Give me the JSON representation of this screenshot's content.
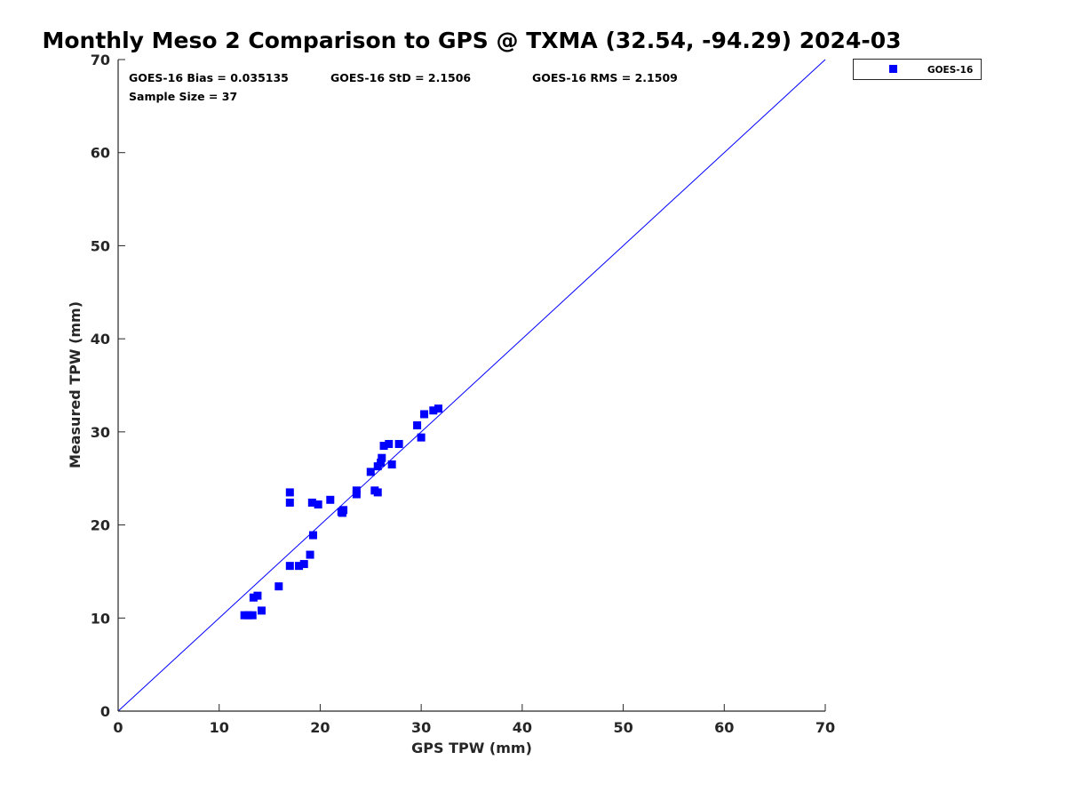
{
  "chart_data": {
    "type": "scatter",
    "title": "Monthly Meso 2 Comparison to GPS @ TXMA (32.54, -94.29) 2024-03",
    "xlabel": "GPS TPW (mm)",
    "ylabel": "Measured TPW (mm)",
    "xlim": [
      0,
      70
    ],
    "ylim": [
      0,
      70
    ],
    "xticks": [
      "0",
      "10",
      "20",
      "30",
      "40",
      "50",
      "60",
      "70"
    ],
    "yticks": [
      "0",
      "10",
      "20",
      "30",
      "40",
      "50",
      "60",
      "70"
    ],
    "grid": false,
    "legend_position": "top-right, outside plot",
    "colors": {
      "series": "#0000ff",
      "reference_line": "#0000ff",
      "axes": "#262626"
    },
    "stats": {
      "bias": "GOES-16 Bias = 0.035135",
      "std": "GOES-16 StD = 2.1506",
      "rms": "GOES-16 RMS = 2.1509",
      "sample_size": "Sample Size = 37"
    },
    "reference_line": {
      "x": [
        0,
        70
      ],
      "y": [
        0,
        70
      ]
    },
    "series": [
      {
        "name": "GOES-16",
        "marker": "square",
        "points": [
          [
            12.5,
            10.3
          ],
          [
            12.9,
            10.3
          ],
          [
            13.3,
            10.3
          ],
          [
            13.4,
            12.2
          ],
          [
            13.8,
            12.4
          ],
          [
            14.2,
            10.8
          ],
          [
            15.9,
            13.4
          ],
          [
            17.0,
            23.5
          ],
          [
            17.0,
            22.4
          ],
          [
            17.0,
            15.6
          ],
          [
            17.9,
            15.6
          ],
          [
            18.4,
            15.8
          ],
          [
            19.0,
            16.8
          ],
          [
            19.2,
            22.4
          ],
          [
            19.3,
            18.9
          ],
          [
            19.8,
            22.2
          ],
          [
            21.0,
            22.7
          ],
          [
            22.1,
            21.4
          ],
          [
            22.3,
            21.6
          ],
          [
            23.6,
            23.3
          ],
          [
            23.6,
            23.7
          ],
          [
            25.0,
            25.7
          ],
          [
            25.4,
            23.7
          ],
          [
            25.7,
            23.5
          ],
          [
            25.7,
            26.3
          ],
          [
            26.0,
            26.7
          ],
          [
            26.1,
            27.2
          ],
          [
            26.3,
            28.5
          ],
          [
            26.8,
            28.7
          ],
          [
            27.1,
            26.5
          ],
          [
            27.8,
            28.7
          ],
          [
            29.6,
            30.7
          ],
          [
            30.0,
            29.4
          ],
          [
            30.3,
            31.9
          ],
          [
            31.2,
            32.3
          ],
          [
            31.7,
            32.5
          ],
          [
            22.2,
            21.3
          ]
        ]
      }
    ]
  }
}
